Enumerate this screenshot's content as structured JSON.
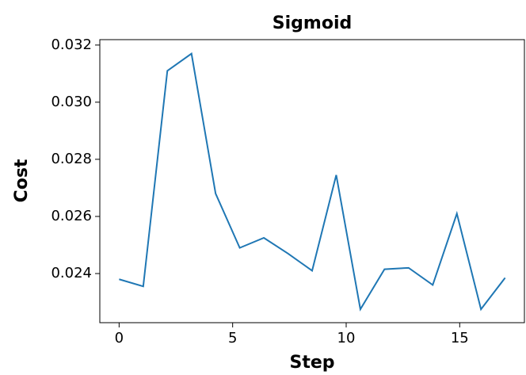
{
  "chart_data": {
    "type": "line",
    "title": "Sigmoid",
    "x_label": "Step",
    "y_label": "Cost",
    "x": [
      0,
      1.0625,
      2.125,
      3.1875,
      4.25,
      5.3125,
      6.375,
      7.4375,
      8.5,
      9.5625,
      10.625,
      11.6875,
      12.75,
      13.8125,
      14.875,
      15.9375,
      17
    ],
    "series": [
      {
        "name": "Sigmoid",
        "color": "#1f77b4",
        "values": [
          0.0238,
          0.02355,
          0.0311,
          0.0317,
          0.0268,
          0.0249,
          0.02525,
          0.0247,
          0.0241,
          0.02745,
          0.02275,
          0.02415,
          0.0242,
          0.0236,
          0.0261,
          0.02275,
          0.02385
        ]
      }
    ],
    "xlim": [
      -0.85,
      17.85
    ],
    "xticks": [
      0,
      5,
      10,
      15
    ],
    "ylim": [
      0.02228,
      0.03219
    ],
    "yticks": [
      0.024,
      0.026,
      0.028,
      {
        "value": 0.03,
        "label": "0.030"
      },
      0.032
    ],
    "grid": false
  }
}
